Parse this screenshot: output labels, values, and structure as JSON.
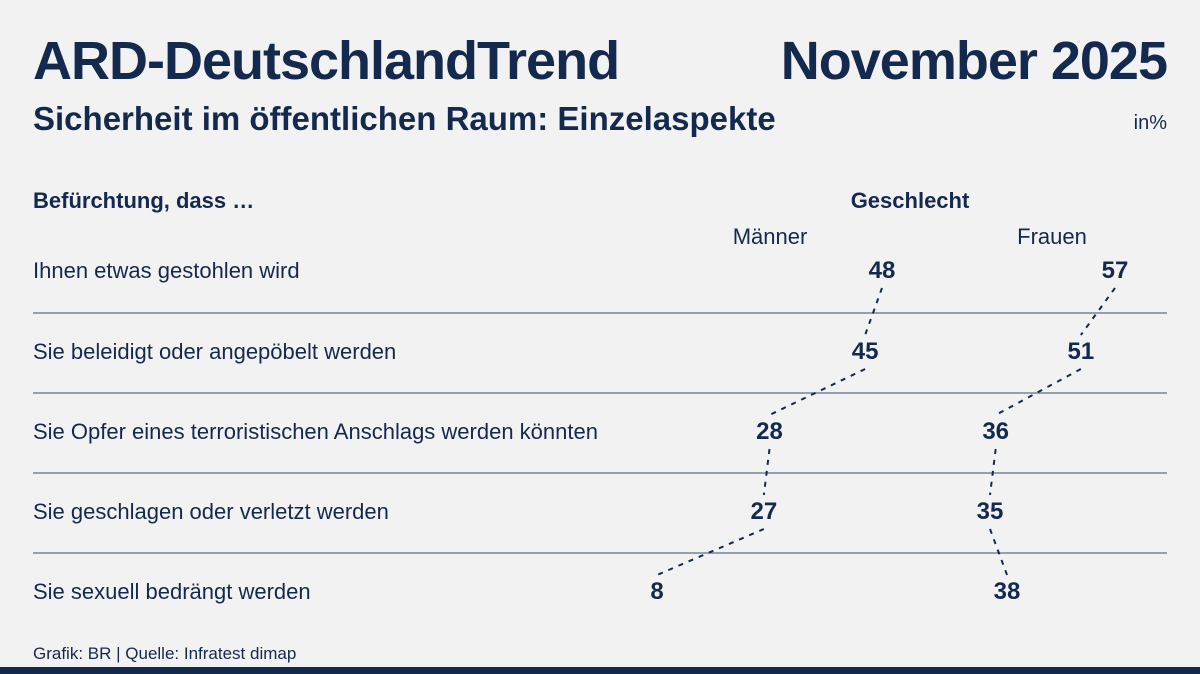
{
  "header": {
    "title": "ARD-DeutschlandTrend",
    "edition": "November 2025",
    "subtitle": "Sicherheit im öffentlichen Raum: Einzelaspekte",
    "unit": "in%"
  },
  "chart_data": {
    "type": "table",
    "title": "Sicherheit im öffentlichen Raum: Einzelaspekte",
    "unit": "in%",
    "row_header": "Befürchtung, dass …",
    "group_header": "Geschlecht",
    "categories": [
      "Ihnen etwas gestohlen wird",
      "Sie beleidigt oder angepöbelt werden",
      "Sie Opfer eines terroristischen Anschlags werden könnten",
      "Sie geschlagen oder verletzt werden",
      "Sie sexuell bedrängt werden"
    ],
    "series": [
      {
        "name": "Männer",
        "values": [
          48,
          45,
          28,
          27,
          8
        ]
      },
      {
        "name": "Frauen",
        "values": [
          57,
          51,
          36,
          35,
          38
        ]
      }
    ],
    "layout_hint": "value labels offset horizontally in proportion to value; dashed connectors link consecutive rows per series; thin separator rules between rows"
  },
  "footer": {
    "credit": "Grafik: BR | Quelle: Infratest dimap"
  },
  "colors": {
    "background": "#f2f2f2",
    "navy": "#14294e",
    "separator": "#76839c",
    "bottom_bar": "#14294e"
  }
}
